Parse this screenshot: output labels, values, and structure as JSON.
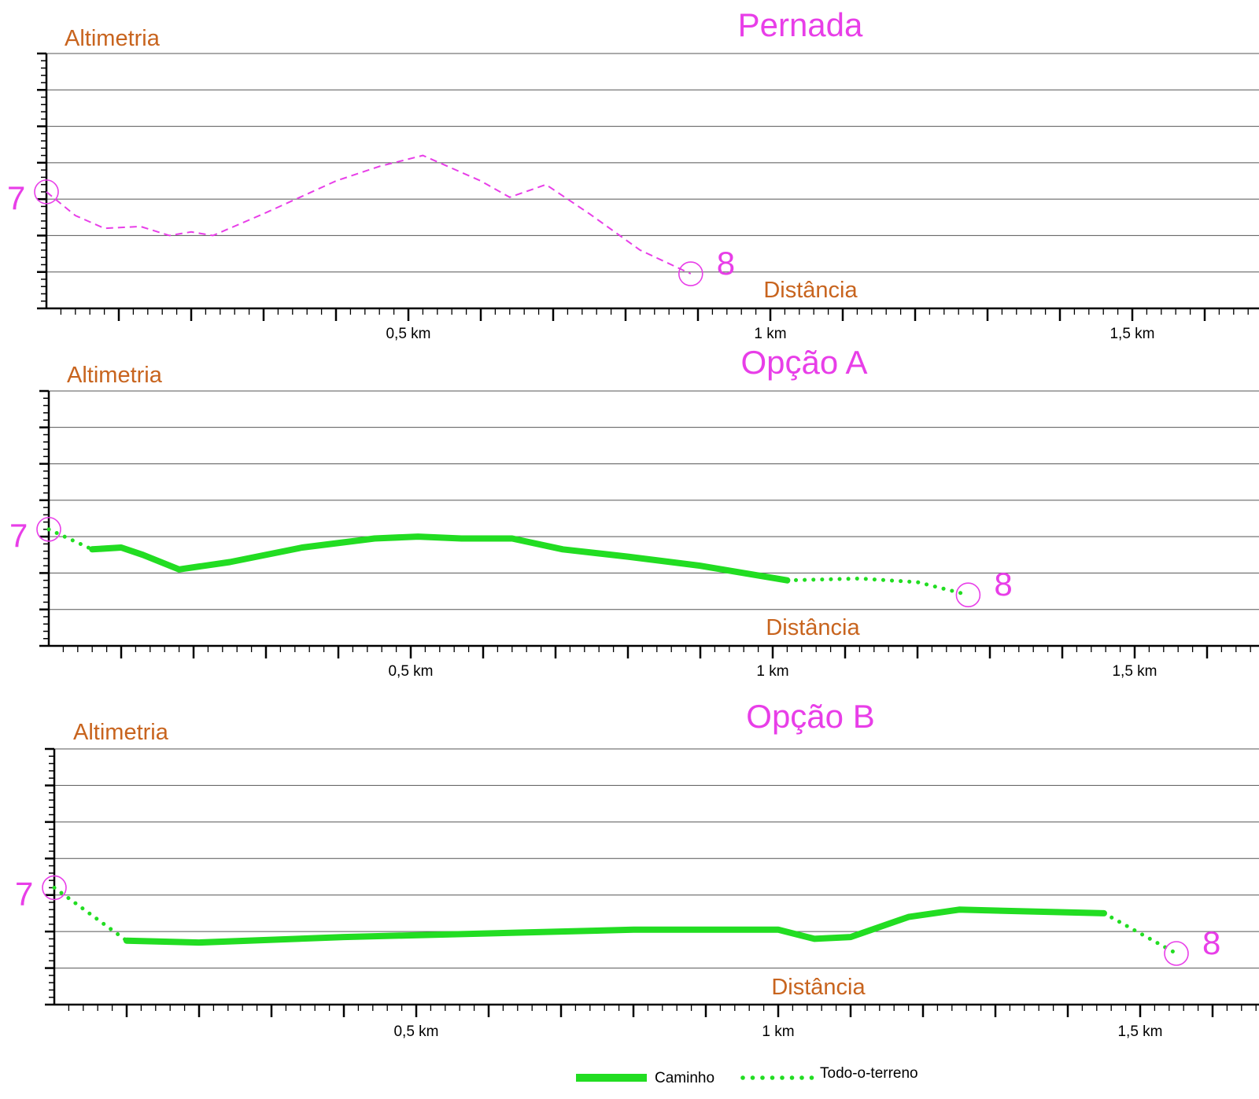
{
  "colors": {
    "title": "#e83ee8",
    "label": "#c8641e",
    "axis": "#000000",
    "grid": "#555555",
    "marker": "#e83ee8",
    "leg": "#e83ee8",
    "path": "#22dd22"
  },
  "legend": {
    "solid_label": "Caminho",
    "dotted_label": "Todo-o-terreno"
  },
  "chart_data": [
    {
      "type": "line",
      "title": "Pernada",
      "ylabel": "Altimetria",
      "xlabel": "Distância",
      "xlim": [
        0,
        1.67
      ],
      "ylim": [
        0,
        7
      ],
      "grid": true,
      "x_ticks": [
        {
          "value": 0.5,
          "label": "0,5 km"
        },
        {
          "value": 1,
          "label": "1 km"
        },
        {
          "value": 1.5,
          "label": "1,5 km"
        }
      ],
      "start_label": "7",
      "end_label": "8",
      "series": [
        {
          "style": "leg",
          "x": [
            0,
            0.04,
            0.08,
            0.13,
            0.17,
            0.2,
            0.23,
            0.3,
            0.4,
            0.46,
            0.52,
            0.6,
            0.64,
            0.69,
            0.75,
            0.82,
            0.89
          ],
          "y": [
            3.2,
            2.55,
            2.2,
            2.25,
            2.0,
            2.1,
            2.0,
            2.6,
            3.5,
            3.9,
            4.2,
            3.5,
            3.05,
            3.4,
            2.6,
            1.6,
            0.95
          ]
        }
      ]
    },
    {
      "type": "line",
      "title": "Opção A",
      "ylabel": "Altimetria",
      "xlabel": "Distância",
      "xlim": [
        0,
        1.67
      ],
      "ylim": [
        0,
        7
      ],
      "grid": true,
      "x_ticks": [
        {
          "value": 0.5,
          "label": "0,5 km"
        },
        {
          "value": 1,
          "label": "1 km"
        },
        {
          "value": 1.5,
          "label": "1,5 km"
        }
      ],
      "start_label": "7",
      "end_label": "8",
      "series": [
        {
          "style": "dotted",
          "x": [
            0,
            0.06
          ],
          "y": [
            3.2,
            2.65
          ]
        },
        {
          "style": "solid",
          "x": [
            0.06,
            0.1,
            0.13,
            0.18,
            0.25,
            0.35,
            0.45,
            0.51,
            0.57,
            0.64,
            0.71,
            0.8,
            0.9,
            1.02
          ],
          "y": [
            2.65,
            2.7,
            2.5,
            2.1,
            2.3,
            2.7,
            2.95,
            3.0,
            2.95,
            2.95,
            2.65,
            2.45,
            2.2,
            1.8
          ]
        },
        {
          "style": "dotted",
          "x": [
            1.02,
            1.12,
            1.2,
            1.27
          ],
          "y": [
            1.8,
            1.85,
            1.75,
            1.4
          ]
        }
      ]
    },
    {
      "type": "line",
      "title": "Opção B",
      "ylabel": "Altimetria",
      "xlabel": "Distância",
      "xlim": [
        0,
        1.67
      ],
      "ylim": [
        0,
        7
      ],
      "grid": true,
      "x_ticks": [
        {
          "value": 0.5,
          "label": "0,5 km"
        },
        {
          "value": 1,
          "label": "1 km"
        },
        {
          "value": 1.5,
          "label": "1,5 km"
        }
      ],
      "start_label": "7",
      "end_label": "8",
      "series": [
        {
          "style": "dotted",
          "x": [
            0,
            0.1
          ],
          "y": [
            3.2,
            1.75
          ]
        },
        {
          "style": "solid",
          "x": [
            0.1,
            0.2,
            0.4,
            0.6,
            0.8,
            1.0,
            1.05,
            1.1,
            1.18,
            1.25,
            1.45
          ],
          "y": [
            1.75,
            1.7,
            1.85,
            1.95,
            2.05,
            2.05,
            1.8,
            1.85,
            2.4,
            2.6,
            2.5
          ]
        },
        {
          "style": "dotted",
          "x": [
            1.45,
            1.55
          ],
          "y": [
            2.5,
            1.4
          ]
        }
      ]
    }
  ]
}
